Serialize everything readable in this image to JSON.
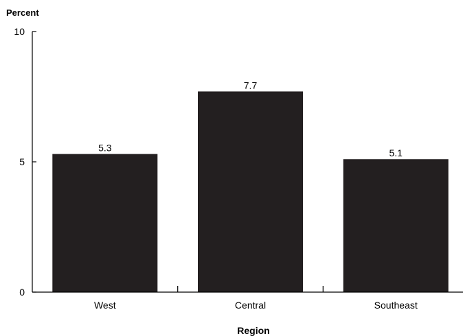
{
  "chart_data": {
    "type": "bar",
    "title": "",
    "ylabel": "Percent",
    "xlabel": "Region",
    "categories": [
      "West",
      "Central",
      "Southeast"
    ],
    "values": [
      5.3,
      7.7,
      5.1
    ],
    "data_labels": [
      "5.3",
      "7.7",
      "5.1"
    ],
    "ylim": [
      0,
      10
    ],
    "yticks": [
      0,
      5,
      10
    ],
    "ytick_labels": [
      "0",
      "5",
      "10"
    ],
    "grid": false,
    "legend": "none",
    "bar_color": "#231f20"
  }
}
